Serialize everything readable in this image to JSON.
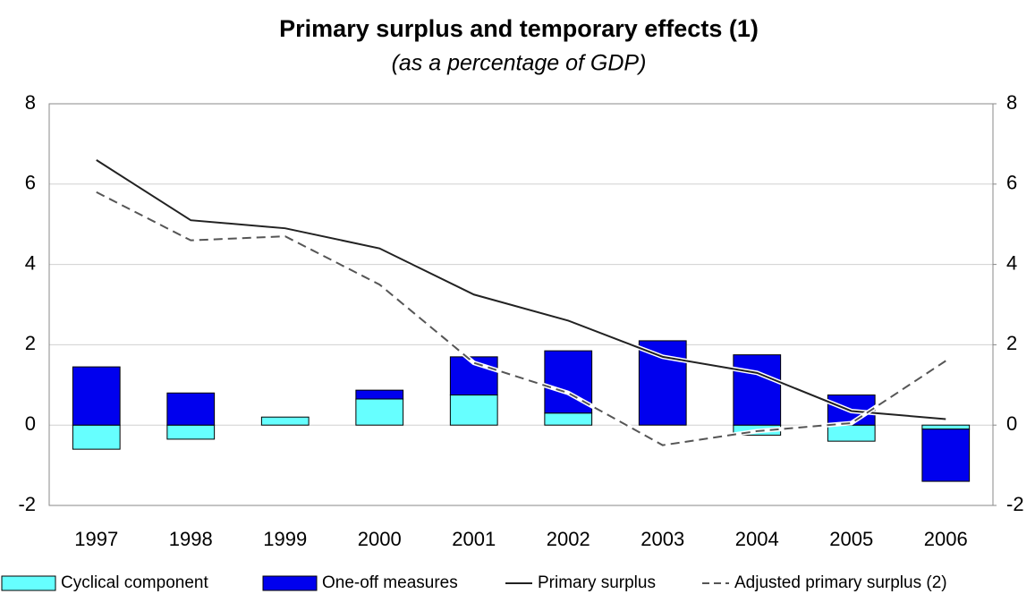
{
  "chart_data": {
    "type": "bar",
    "title": "Primary surplus and temporary effects (1)",
    "subtitle": "(as a percentage of GDP)",
    "categories": [
      "1997",
      "1998",
      "1999",
      "2000",
      "2001",
      "2002",
      "2003",
      "2004",
      "2005",
      "2006"
    ],
    "series": [
      {
        "name": "Cyclical component",
        "type": "bar",
        "color": "#66ffff",
        "values": [
          -0.6,
          -0.35,
          0.2,
          0.65,
          0.75,
          0.3,
          0,
          -0.25,
          -0.4,
          -0.1
        ]
      },
      {
        "name": "One-off measures",
        "type": "bar",
        "color": "#0000ee",
        "values": [
          1.45,
          0.8,
          0,
          0.22,
          0.95,
          1.55,
          2.1,
          1.75,
          0.75,
          -1.3
        ]
      },
      {
        "name": "Primary surplus",
        "type": "line",
        "color": "#222222",
        "dashed": false,
        "values": [
          6.6,
          5.1,
          4.9,
          4.4,
          3.25,
          2.6,
          1.7,
          1.3,
          0.35,
          0.15
        ]
      },
      {
        "name": "Adjusted primary surplus (2)",
        "type": "line",
        "color": "#555555",
        "dashed": true,
        "values": [
          5.8,
          4.6,
          4.7,
          3.5,
          1.55,
          0.8,
          -0.5,
          -0.15,
          0.05,
          1.6
        ]
      }
    ],
    "ylim": [
      -2,
      8
    ],
    "yticks": [
      -2,
      0,
      2,
      4,
      6,
      8
    ],
    "y2lim": [
      -2,
      8
    ],
    "y2ticks": [
      -2,
      0,
      2,
      4,
      6,
      8
    ],
    "grid": true
  }
}
